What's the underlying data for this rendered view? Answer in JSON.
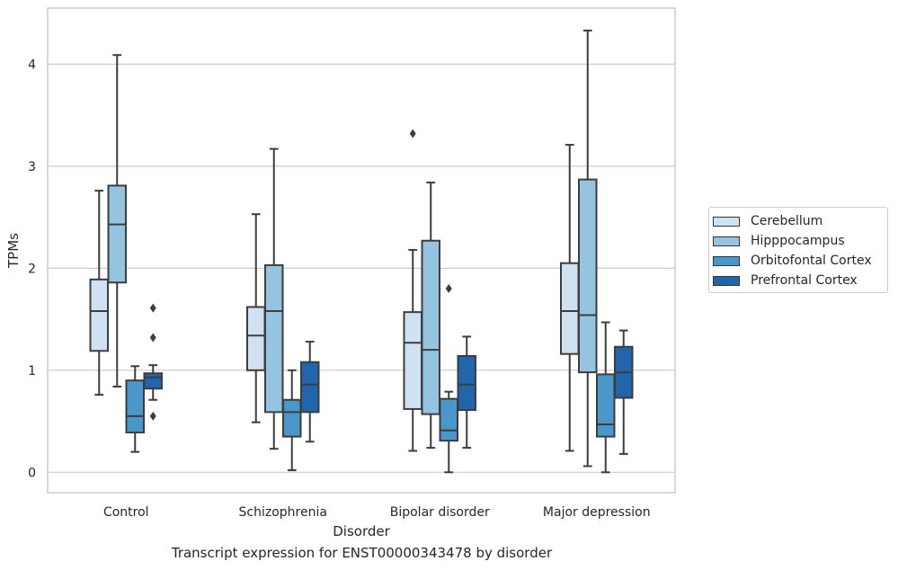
{
  "caption": "Transcript expression for ENST00000343478 by disorder",
  "chart_data": {
    "type": "box",
    "xlabel": "Disorder",
    "ylabel": "TPMs",
    "ylim": [
      -0.2,
      4.55
    ],
    "yticks": [
      0,
      1,
      2,
      3,
      4
    ],
    "grid": true,
    "legend_position": "right",
    "categories": [
      "Control",
      "Schizophrenia",
      "Bipolar disorder",
      "Major depression"
    ],
    "series": [
      {
        "name": "Cerebellum",
        "color": "#d0e1f2",
        "boxes": [
          {
            "whislo": 0.76,
            "q1": 1.19,
            "med": 1.58,
            "q3": 1.89,
            "whishi": 2.76,
            "fliers": []
          },
          {
            "whislo": 0.49,
            "q1": 1.0,
            "med": 1.34,
            "q3": 1.62,
            "whishi": 2.53,
            "fliers": []
          },
          {
            "whislo": 0.21,
            "q1": 0.62,
            "med": 1.27,
            "q3": 1.57,
            "whishi": 2.18,
            "fliers": [
              3.32
            ]
          },
          {
            "whislo": 0.21,
            "q1": 1.16,
            "med": 1.58,
            "q3": 2.05,
            "whishi": 3.21,
            "fliers": []
          }
        ]
      },
      {
        "name": "Hipppocampus",
        "color": "#94c4df",
        "boxes": [
          {
            "whislo": 0.84,
            "q1": 1.86,
            "med": 2.43,
            "q3": 2.81,
            "whishi": 4.09,
            "fliers": []
          },
          {
            "whislo": 0.23,
            "q1": 0.59,
            "med": 1.58,
            "q3": 2.03,
            "whishi": 3.17,
            "fliers": []
          },
          {
            "whislo": 0.24,
            "q1": 0.57,
            "med": 1.2,
            "q3": 2.27,
            "whishi": 2.84,
            "fliers": []
          },
          {
            "whislo": 0.06,
            "q1": 0.98,
            "med": 1.54,
            "q3": 2.87,
            "whishi": 4.33,
            "fliers": []
          }
        ]
      },
      {
        "name": "Orbitofontal Cortex",
        "color": "#4a98c9",
        "boxes": [
          {
            "whislo": 0.2,
            "q1": 0.39,
            "med": 0.55,
            "q3": 0.9,
            "whishi": 1.04,
            "fliers": []
          },
          {
            "whislo": 0.02,
            "q1": 0.35,
            "med": 0.59,
            "q3": 0.71,
            "whishi": 1.0,
            "fliers": []
          },
          {
            "whislo": 0.0,
            "q1": 0.31,
            "med": 0.41,
            "q3": 0.72,
            "whishi": 0.79,
            "fliers": [
              1.8
            ]
          },
          {
            "whislo": 0.0,
            "q1": 0.35,
            "med": 0.47,
            "q3": 0.96,
            "whishi": 1.47,
            "fliers": []
          }
        ]
      },
      {
        "name": "Prefrontal Cortex",
        "color": "#2166ac",
        "boxes": [
          {
            "whislo": 0.71,
            "q1": 0.82,
            "med": 0.93,
            "q3": 0.97,
            "whishi": 1.05,
            "fliers": [
              1.61,
              1.32,
              0.55
            ]
          },
          {
            "whislo": 0.3,
            "q1": 0.59,
            "med": 0.86,
            "q3": 1.08,
            "whishi": 1.28,
            "fliers": []
          },
          {
            "whislo": 0.24,
            "q1": 0.61,
            "med": 0.86,
            "q3": 1.14,
            "whishi": 1.33,
            "fliers": []
          },
          {
            "whislo": 0.18,
            "q1": 0.73,
            "med": 0.98,
            "q3": 1.23,
            "whishi": 1.39,
            "fliers": []
          }
        ]
      }
    ]
  }
}
